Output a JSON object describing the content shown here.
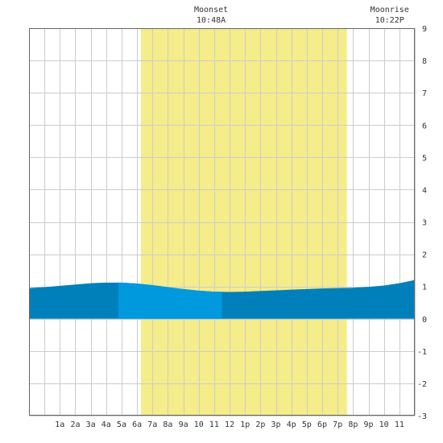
{
  "chart_data": {
    "type": "area",
    "title": "",
    "xlabel": "",
    "ylabel": "",
    "x_range_hours": [
      -1,
      24
    ],
    "ylim": [
      -3,
      9
    ],
    "yticks": [
      -3,
      -2,
      -1,
      0,
      1,
      2,
      3,
      4,
      5,
      6,
      7,
      8,
      9
    ],
    "xtick_labels": [
      "1a",
      "2a",
      "3a",
      "4a",
      "5a",
      "6a",
      "7a",
      "8a",
      "9a",
      "10",
      "11",
      "12",
      "1p",
      "2p",
      "3p",
      "4p",
      "5p",
      "6p",
      "7p",
      "8p",
      "9p",
      "10",
      "11"
    ],
    "xtick_hours": [
      1,
      2,
      3,
      4,
      5,
      6,
      7,
      8,
      9,
      10,
      11,
      12,
      13,
      14,
      15,
      16,
      17,
      18,
      19,
      20,
      21,
      22,
      23
    ],
    "grid": true,
    "daylight": {
      "start_hour": 6.25,
      "end_hour": 19.6
    },
    "highlight_band": {
      "start_hour": 4.8,
      "end_hour": 11.5
    },
    "annotations": [
      {
        "event": "Moonset",
        "time": "10:48A",
        "hour": 10.8
      },
      {
        "event": "Moonrise",
        "time": "10:22P",
        "hour": 22.37
      }
    ],
    "series": [
      {
        "x": [
          -1,
          0,
          1,
          2,
          3,
          4,
          5,
          6,
          7,
          8,
          9,
          10,
          11,
          12,
          13,
          14,
          15,
          16,
          17,
          18,
          19,
          20,
          21,
          22,
          23,
          24
        ],
        "values": [
          0.95,
          0.98,
          1.02,
          1.06,
          1.1,
          1.12,
          1.12,
          1.09,
          1.04,
          0.98,
          0.92,
          0.87,
          0.84,
          0.83,
          0.84,
          0.86,
          0.88,
          0.9,
          0.92,
          0.94,
          0.95,
          0.96,
          0.99,
          1.03,
          1.1,
          1.2
        ]
      }
    ],
    "colors": {
      "background": "#ffffff",
      "grid": "#cccccc",
      "daylight": "#f5ec8a",
      "fill": "#0080bb",
      "highlight": "#0099dd",
      "text": "#333333",
      "axis": "#666666"
    }
  }
}
